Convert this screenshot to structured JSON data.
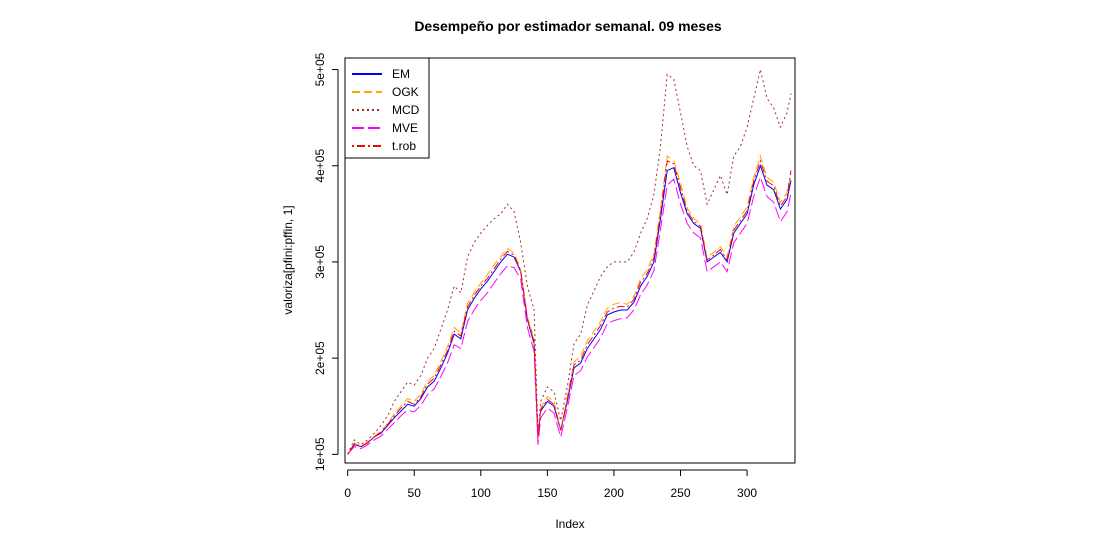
{
  "chart_data": {
    "type": "line",
    "title": "Desempeño por estimador semanal. 09 meses",
    "xlabel": "Index",
    "ylabel": "valoriza[pfini:pffin, 1]",
    "xlim": [
      -2,
      336
    ],
    "ylim": [
      91000,
      512000
    ],
    "x_ticks": [
      0,
      50,
      100,
      150,
      200,
      250,
      300
    ],
    "x_tick_labels": [
      "0",
      "50",
      "100",
      "150",
      "200",
      "250",
      "300"
    ],
    "y_ticks": [
      100000,
      200000,
      300000,
      400000,
      500000
    ],
    "y_tick_labels": [
      "1e+05",
      "2e+05",
      "3e+05",
      "4e+05",
      "5e+05"
    ],
    "grid": false,
    "legend_position": "top-left",
    "series": [
      {
        "name": "EM",
        "color": "#0000ff",
        "dash": "solid",
        "x": [
          0,
          5,
          10,
          15,
          20,
          25,
          30,
          35,
          40,
          45,
          50,
          55,
          60,
          65,
          70,
          75,
          80,
          85,
          90,
          95,
          100,
          105,
          110,
          115,
          120,
          125,
          130,
          135,
          140,
          143,
          145,
          150,
          155,
          160,
          165,
          170,
          175,
          180,
          185,
          190,
          195,
          200,
          205,
          210,
          215,
          220,
          225,
          230,
          235,
          240,
          245,
          250,
          255,
          260,
          265,
          270,
          275,
          280,
          285,
          290,
          295,
          300,
          305,
          310,
          315,
          320,
          325,
          330,
          333
        ],
        "values": [
          100000,
          110000,
          108000,
          112000,
          118000,
          122000,
          130000,
          138000,
          145000,
          152000,
          150000,
          158000,
          170000,
          176000,
          190000,
          205000,
          225000,
          220000,
          250000,
          262000,
          272000,
          280000,
          290000,
          300000,
          308000,
          305000,
          290000,
          240000,
          215000,
          120000,
          145000,
          155000,
          150000,
          125000,
          155000,
          190000,
          195000,
          210000,
          220000,
          230000,
          245000,
          248000,
          250000,
          250000,
          258000,
          275000,
          285000,
          300000,
          345000,
          395000,
          398000,
          372000,
          350000,
          340000,
          335000,
          300000,
          305000,
          310000,
          300000,
          330000,
          340000,
          350000,
          380000,
          400000,
          380000,
          375000,
          355000,
          365000,
          385000
        ]
      },
      {
        "name": "OGK",
        "color": "#ffa500",
        "dash": "dashed",
        "x": [
          0,
          5,
          10,
          15,
          20,
          25,
          30,
          35,
          40,
          45,
          50,
          55,
          60,
          65,
          70,
          75,
          80,
          85,
          90,
          95,
          100,
          105,
          110,
          115,
          120,
          125,
          130,
          135,
          140,
          143,
          145,
          150,
          155,
          160,
          165,
          170,
          175,
          180,
          185,
          190,
          195,
          200,
          205,
          210,
          215,
          220,
          225,
          230,
          235,
          240,
          245,
          250,
          255,
          260,
          265,
          270,
          275,
          280,
          285,
          290,
          295,
          300,
          305,
          310,
          315,
          320,
          325,
          330,
          333
        ],
        "values": [
          100000,
          112000,
          108000,
          113000,
          119000,
          124000,
          132000,
          142000,
          150000,
          158000,
          155000,
          163000,
          176000,
          182000,
          197000,
          212000,
          232000,
          226000,
          257000,
          268000,
          278000,
          287000,
          297000,
          306000,
          314000,
          309000,
          292000,
          243000,
          220000,
          115000,
          148000,
          160000,
          155000,
          125000,
          160000,
          196000,
          202000,
          218000,
          228000,
          238000,
          252000,
          256000,
          258000,
          256000,
          264000,
          283000,
          292000,
          308000,
          355000,
          410000,
          405000,
          382000,
          356000,
          345000,
          340000,
          305000,
          310000,
          316000,
          305000,
          337000,
          347000,
          357000,
          388000,
          410000,
          388000,
          383000,
          362000,
          372000,
          392000
        ]
      },
      {
        "name": "MCD",
        "color": "#a52a2a",
        "dash": "dotted",
        "x": [
          0,
          5,
          10,
          15,
          20,
          25,
          30,
          35,
          40,
          45,
          50,
          55,
          60,
          65,
          70,
          75,
          80,
          85,
          90,
          95,
          100,
          105,
          110,
          115,
          120,
          125,
          130,
          135,
          140,
          143,
          145,
          150,
          155,
          160,
          165,
          170,
          175,
          180,
          185,
          190,
          195,
          200,
          205,
          210,
          215,
          220,
          225,
          230,
          235,
          240,
          245,
          250,
          255,
          260,
          265,
          270,
          275,
          280,
          285,
          290,
          295,
          300,
          305,
          310,
          315,
          320,
          325,
          330,
          333
        ],
        "values": [
          100000,
          115000,
          110000,
          115000,
          122000,
          130000,
          140000,
          155000,
          165000,
          175000,
          172000,
          182000,
          200000,
          210000,
          230000,
          250000,
          275000,
          268000,
          305000,
          320000,
          330000,
          338000,
          345000,
          350000,
          360000,
          352000,
          320000,
          275000,
          250000,
          120000,
          155000,
          170000,
          165000,
          135000,
          170000,
          215000,
          225000,
          255000,
          270000,
          285000,
          295000,
          300000,
          300000,
          300000,
          310000,
          330000,
          345000,
          370000,
          420000,
          495000,
          490000,
          455000,
          420000,
          400000,
          395000,
          360000,
          375000,
          390000,
          370000,
          410000,
          420000,
          440000,
          470000,
          500000,
          470000,
          460000,
          440000,
          455000,
          475000
        ]
      },
      {
        "name": "MVE",
        "color": "#ff00ff",
        "dash": "longdash",
        "x": [
          0,
          5,
          10,
          15,
          20,
          25,
          30,
          35,
          40,
          45,
          50,
          55,
          60,
          65,
          70,
          75,
          80,
          85,
          90,
          95,
          100,
          105,
          110,
          115,
          120,
          125,
          130,
          135,
          140,
          143,
          145,
          150,
          155,
          160,
          165,
          170,
          175,
          180,
          185,
          190,
          195,
          200,
          205,
          210,
          215,
          220,
          225,
          230,
          235,
          240,
          245,
          250,
          255,
          260,
          265,
          270,
          275,
          280,
          285,
          290,
          295,
          300,
          305,
          310,
          315,
          320,
          325,
          330,
          333
        ],
        "values": [
          100000,
          108000,
          106000,
          110000,
          115000,
          119000,
          126000,
          133000,
          140000,
          146000,
          144000,
          151000,
          162000,
          168000,
          181000,
          195000,
          214000,
          210000,
          238000,
          250000,
          260000,
          268000,
          278000,
          288000,
          296000,
          294000,
          282000,
          232000,
          207000,
          110000,
          138000,
          148000,
          143000,
          118000,
          148000,
          182000,
          187000,
          201000,
          211000,
          221000,
          236000,
          239000,
          241000,
          242000,
          250000,
          266000,
          276000,
          291000,
          334000,
          380000,
          386000,
          360000,
          340000,
          330000,
          325000,
          290000,
          295000,
          300000,
          290000,
          320000,
          330000,
          340000,
          368000,
          388000,
          368000,
          362000,
          342000,
          352000,
          372000
        ]
      },
      {
        "name": "t.rob",
        "color": "#ff0000",
        "dash": "dotdash",
        "x": [
          0,
          5,
          10,
          15,
          20,
          25,
          30,
          35,
          40,
          45,
          50,
          55,
          60,
          65,
          70,
          75,
          80,
          85,
          90,
          95,
          100,
          105,
          110,
          115,
          120,
          125,
          130,
          135,
          140,
          143,
          145,
          150,
          155,
          160,
          165,
          170,
          175,
          180,
          185,
          190,
          195,
          200,
          205,
          210,
          215,
          220,
          225,
          230,
          235,
          240,
          245,
          250,
          255,
          260,
          265,
          270,
          275,
          280,
          285,
          290,
          295,
          300,
          305,
          310,
          315,
          320,
          325,
          330,
          333
        ],
        "values": [
          100000,
          111000,
          108000,
          112000,
          118000,
          123000,
          131000,
          140000,
          148000,
          155000,
          152000,
          160000,
          173000,
          179000,
          193000,
          208000,
          228000,
          223000,
          253000,
          265000,
          275000,
          283000,
          293000,
          303000,
          311000,
          307000,
          291000,
          241000,
          217000,
          117000,
          146000,
          157000,
          152000,
          125000,
          157000,
          193000,
          198000,
          214000,
          224000,
          234000,
          248000,
          252000,
          254000,
          253000,
          261000,
          279000,
          288000,
          304000,
          350000,
          405000,
          402000,
          377000,
          353000,
          342000,
          337000,
          302000,
          307000,
          313000,
          302000,
          333000,
          343000,
          353000,
          384000,
          405000,
          384000,
          379000,
          358000,
          368000,
          395000
        ]
      }
    ]
  }
}
